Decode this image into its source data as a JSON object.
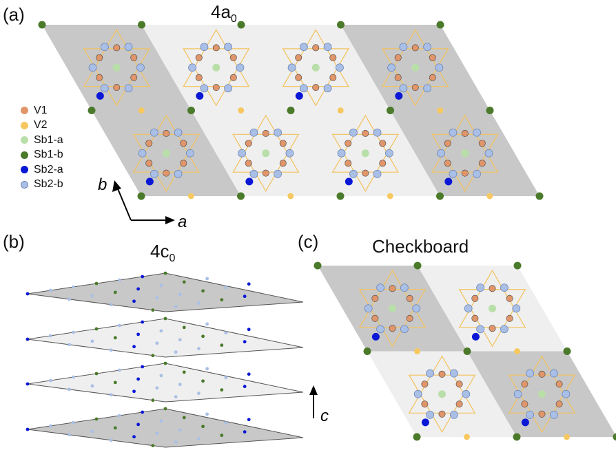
{
  "panels": {
    "a": {
      "tag": "(a)",
      "title_base": "4a",
      "title_sub": "0"
    },
    "b": {
      "tag": "(b)",
      "title_base": "4c",
      "title_sub": "0"
    },
    "c": {
      "tag": "(c)",
      "title": "Checkboard"
    }
  },
  "legend": [
    {
      "label": "V1",
      "color": "#e0956a"
    },
    {
      "label": "V2",
      "color": "#f6c85f"
    },
    {
      "label": "Sb1-a",
      "color": "#b9dfa9"
    },
    {
      "label": "Sb1-b",
      "color": "#4a7a2a"
    },
    {
      "label": "Sb2-a",
      "color": "#0a18d6"
    },
    {
      "label": "Sb2-b",
      "color": "#a9bfe6"
    }
  ],
  "axes": {
    "a": "a",
    "b": "b",
    "c": "c"
  },
  "colors": {
    "dark_region": "#c8c8c8",
    "light_region": "#efefef",
    "bond": "#f3c15a"
  }
}
